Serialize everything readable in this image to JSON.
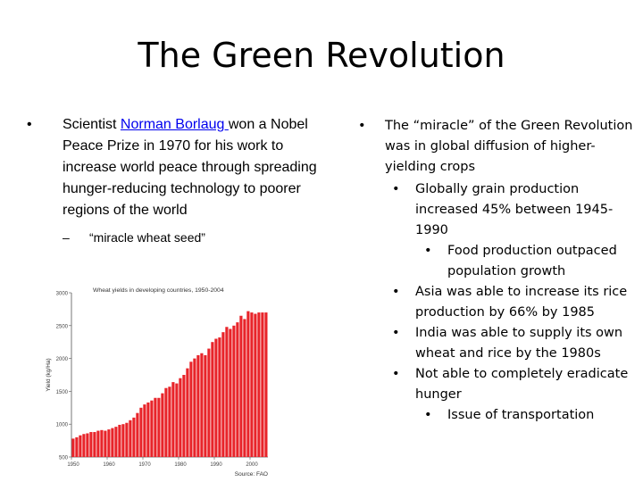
{
  "slide": {
    "title": "The Green Revolution"
  },
  "left": {
    "bullet": "•",
    "text_before": "Scientist ",
    "link": "Norman Borlaug ",
    "text_after": "won a Nobel Peace Prize in 1970 for his work to increase world peace through spreading hunger-reducing technology to poorer regions of the world",
    "sub_dash": "–",
    "sub": "“miracle wheat seed”"
  },
  "right": {
    "bullet": "•",
    "main": "The “miracle” of the Green Revolution was in global diffusion of higher-yielding crops",
    "items": [
      "Globally grain production increased 45% between 1945-1990",
      "Food production outpaced population growth",
      "Asia was able to increase its rice production by 66% by 1985",
      "India was able to supply its own wheat and rice by the 1980s",
      "Not able to completely eradicate hunger",
      "Issue of transportation"
    ]
  },
  "chart_data": {
    "type": "bar",
    "title": "Wheat yields in developing countries, 1950-2004",
    "ylabel": "Yield (kg/Ha)",
    "xlabel": "",
    "source": "Source:  FAO",
    "bar_color": "#e8242a",
    "ylim": [
      500,
      3000
    ],
    "yticks": [
      500,
      1000,
      1500,
      2000,
      2500,
      3000
    ],
    "xticks": [
      1950,
      1960,
      1970,
      1980,
      1990,
      2000
    ],
    "x": [
      1950,
      1951,
      1952,
      1953,
      1954,
      1955,
      1956,
      1957,
      1958,
      1959,
      1960,
      1961,
      1962,
      1963,
      1964,
      1965,
      1966,
      1967,
      1968,
      1969,
      1970,
      1971,
      1972,
      1973,
      1974,
      1975,
      1976,
      1977,
      1978,
      1979,
      1980,
      1981,
      1982,
      1983,
      1984,
      1985,
      1986,
      1987,
      1988,
      1989,
      1990,
      1991,
      1992,
      1993,
      1994,
      1995,
      1996,
      1997,
      1998,
      1999,
      2000,
      2001,
      2002,
      2003,
      2004
    ],
    "values": [
      780,
      800,
      830,
      850,
      860,
      880,
      880,
      900,
      910,
      900,
      920,
      940,
      960,
      990,
      1000,
      1020,
      1060,
      1100,
      1170,
      1250,
      1300,
      1330,
      1360,
      1400,
      1400,
      1470,
      1550,
      1570,
      1640,
      1620,
      1700,
      1750,
      1850,
      1950,
      2000,
      2050,
      2080,
      2050,
      2150,
      2250,
      2300,
      2320,
      2400,
      2480,
      2450,
      2500,
      2550,
      2650,
      2600,
      2720,
      2700,
      2680,
      2700,
      2700,
      2700
    ]
  }
}
